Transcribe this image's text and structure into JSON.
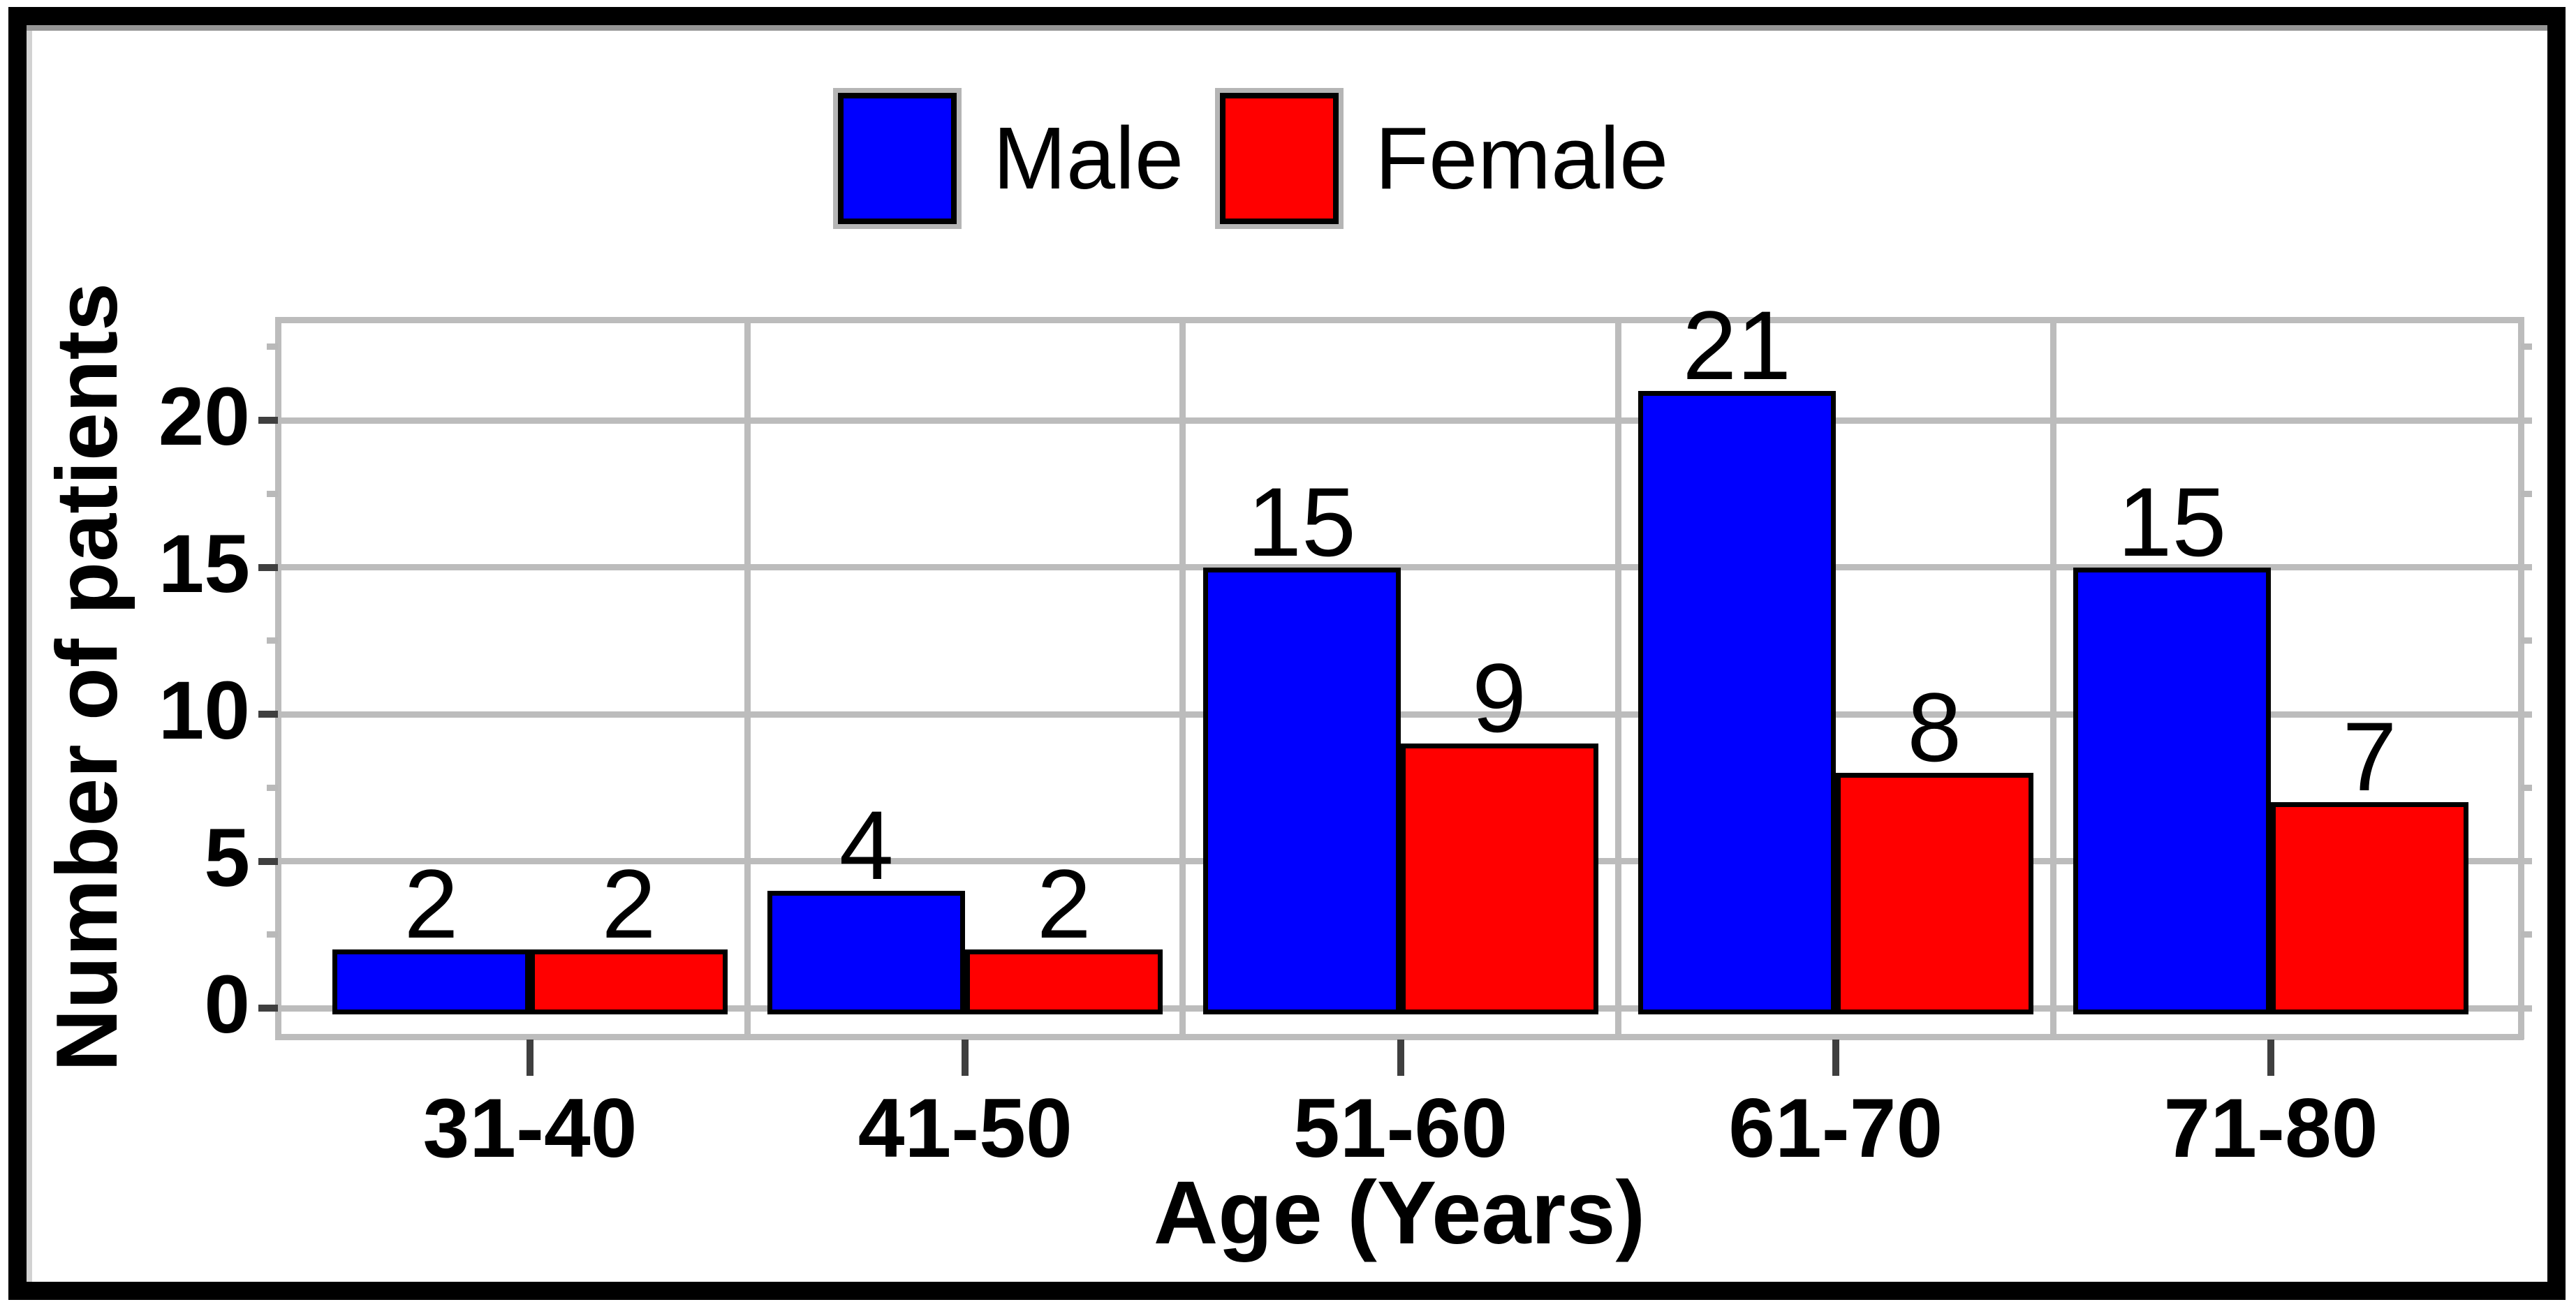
{
  "chart_data": {
    "type": "bar",
    "title": "",
    "categories": [
      "31-40",
      "41-50",
      "51-60",
      "61-70",
      "71-80"
    ],
    "series": [
      {
        "name": "Male",
        "color": "#0000ff",
        "values": [
          2,
          4,
          15,
          21,
          15
        ]
      },
      {
        "name": "Female",
        "color": "#ff0000",
        "values": [
          2,
          2,
          9,
          8,
          7
        ]
      }
    ],
    "xlabel": "Age (Years)",
    "ylabel": "Number of patients",
    "yticks": [
      0,
      5,
      10,
      15,
      20
    ],
    "ytick_labels": [
      "0",
      "5",
      "10",
      "15",
      "20"
    ],
    "minor_tick_interval": 2.5,
    "ylim": [
      -0.97,
      23.42
    ],
    "grid": true,
    "legend_position": "top-center",
    "bar_value_labels": {
      "Male": [
        "2",
        "4",
        "15",
        "21",
        "15"
      ],
      "Female": [
        "2",
        "2",
        "9",
        "8",
        "7"
      ]
    }
  }
}
